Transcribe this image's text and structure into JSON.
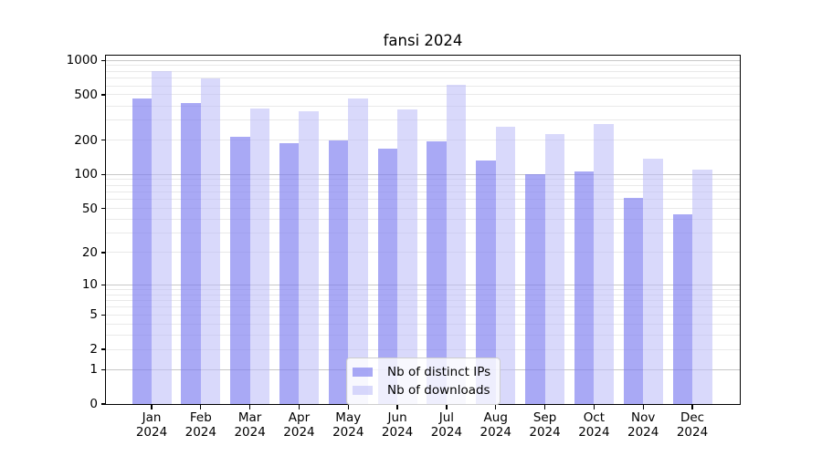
{
  "figure": {
    "background": "#ffffff"
  },
  "chart_data": {
    "type": "bar",
    "title": "fansi 2024",
    "categories": [
      "Jan",
      "Feb",
      "Mar",
      "Apr",
      "May",
      "Jun",
      "Jul",
      "Aug",
      "Sep",
      "Oct",
      "Nov",
      "Dec"
    ],
    "category_year": "2024",
    "series": [
      {
        "name": "Nb of distinct IPs",
        "color": "#7d7df0",
        "alpha": 0.66,
        "values": [
          460,
          425,
          213,
          190,
          198,
          168,
          194,
          132,
          100,
          106,
          62,
          44
        ]
      },
      {
        "name": "Nb of downloads",
        "color": "#bbbbf7",
        "alpha": 0.56,
        "values": [
          810,
          690,
          377,
          356,
          460,
          370,
          612,
          262,
          225,
          275,
          137,
          110
        ]
      }
    ],
    "xlabel": "",
    "ylabel": "",
    "yscale": "log1p",
    "ylim": [
      0,
      1100
    ],
    "yticks": [
      0,
      1,
      2,
      5,
      10,
      20,
      50,
      100,
      200,
      500,
      1000
    ],
    "grid": true,
    "grid_major_color": "#c8c8c8",
    "grid_minor_color": "#e9e9e9",
    "legend_position": "lower center"
  }
}
